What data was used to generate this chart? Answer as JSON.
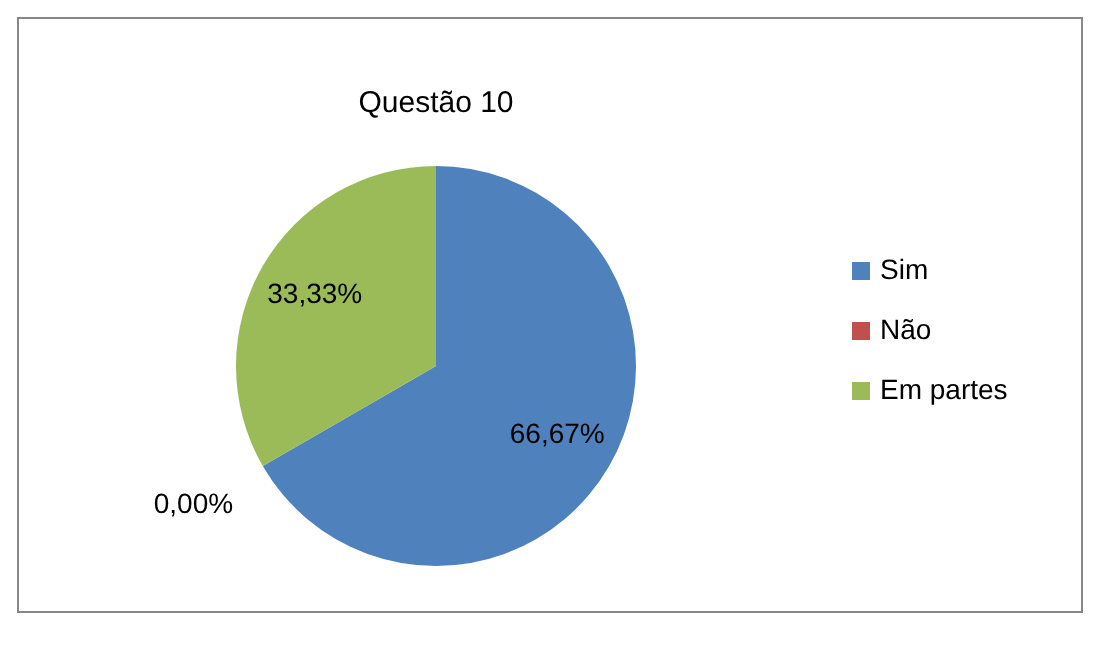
{
  "chart_data": {
    "type": "pie",
    "title": "Questão 10",
    "categories": [
      "Sim",
      "Não",
      "Em partes"
    ],
    "values": [
      66.67,
      0,
      33.33
    ],
    "colors": [
      "#4f81bd",
      "#c0504d",
      "#9bbb59"
    ],
    "value_labels": [
      "66,67%",
      "0,00%",
      "33,33%"
    ],
    "legend": "right"
  }
}
